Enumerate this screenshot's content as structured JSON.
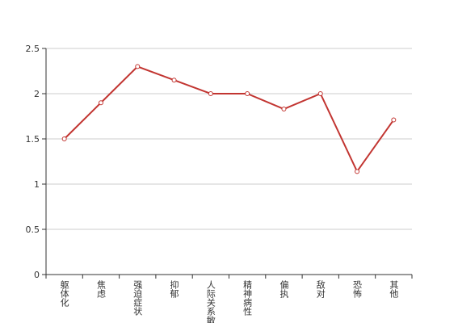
{
  "chart_data": {
    "type": "line",
    "categories": [
      "躯体化",
      "焦虑",
      "强迫症状",
      "抑郁",
      "人际关系敏感",
      "精神病性",
      "偏执",
      "敌对",
      "恐怖",
      "其他"
    ],
    "series": [
      {
        "color": "#c23531",
        "values": [
          1.5,
          1.9,
          2.3,
          2.15,
          2.0,
          2.0,
          1.83,
          2.0,
          1.14,
          1.71
        ]
      }
    ],
    "ylim": [
      0,
      2.5
    ],
    "yticks": [
      0,
      0.5,
      1,
      1.5,
      2,
      2.5
    ],
    "grid": true
  }
}
